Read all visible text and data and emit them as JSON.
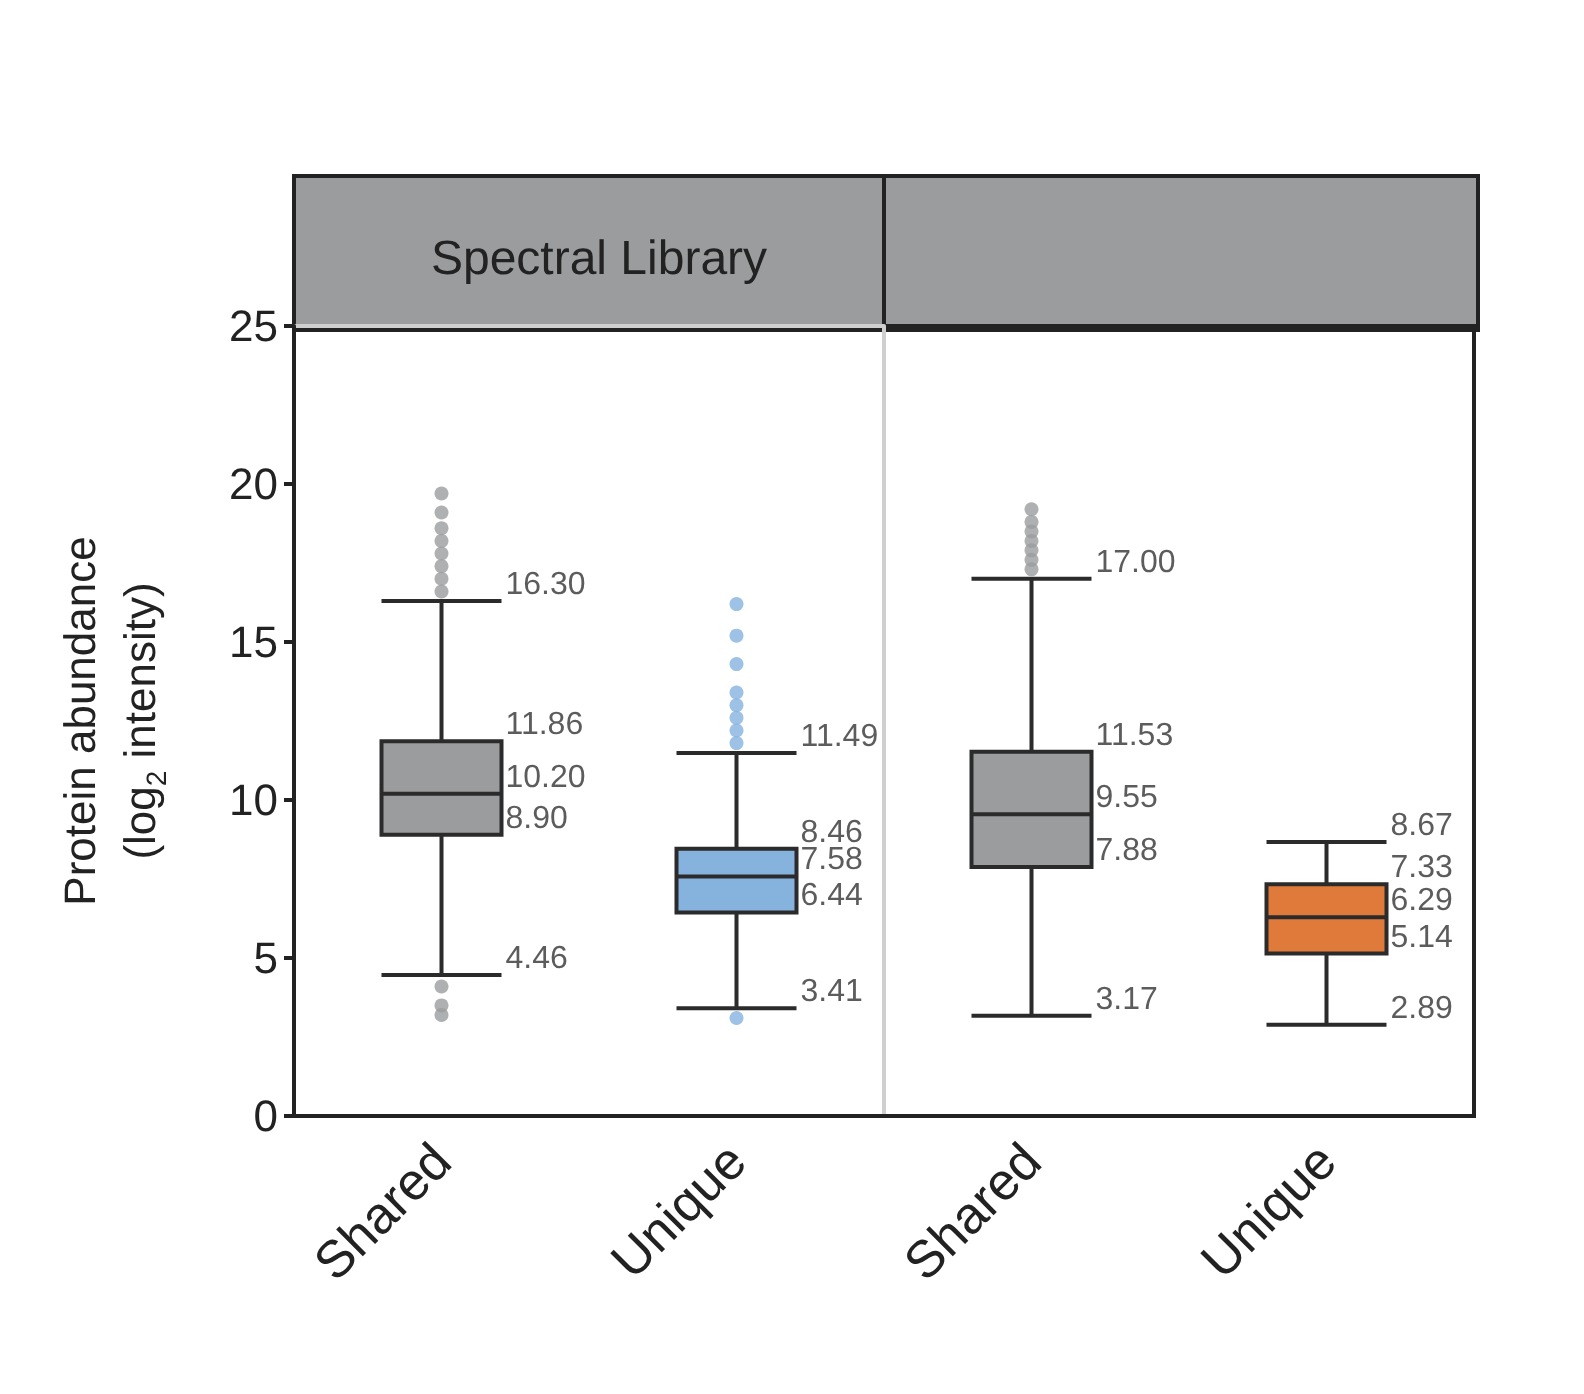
{
  "chart_data": [
    {
      "type": "box",
      "title": "Spectral Library",
      "ylabel": "Protein abundance\n(log$_{2}$ intensity)",
      "categories": [
        "Shared",
        "Unique"
      ],
      "colors": [
        "#9a9c9e",
        "#86b3de"
      ],
      "boxes": [
        {
          "low": 4.46,
          "q1": 8.9,
          "median": 10.2,
          "q3": 11.86,
          "high": 16.3,
          "outliers": [
            16.6,
            17.0,
            17.4,
            17.8,
            18.2,
            18.6,
            19.1,
            19.7,
            4.1,
            3.5,
            3.2
          ]
        },
        {
          "low": 3.41,
          "q1": 6.44,
          "median": 7.58,
          "q3": 8.46,
          "high": 11.49,
          "outliers": [
            11.8,
            12.2,
            12.6,
            13.0,
            13.4,
            14.3,
            15.2,
            16.2,
            3.1
          ]
        }
      ],
      "value_labels": [
        [
          "4.46",
          "8.90",
          "10.20",
          "11.86",
          "16.30"
        ],
        [
          "3.41",
          "6.44",
          "7.58",
          "8.46",
          "11.49"
        ]
      ],
      "ylim": [
        0,
        25
      ],
      "yticks": [
        0,
        5,
        10,
        15,
        20,
        25
      ]
    },
    {
      "type": "box",
      "categories": [
        "Shared",
        "Unique"
      ],
      "colors": [
        "#9a9c9e",
        "#e07a3a"
      ],
      "boxes": [
        {
          "low": 3.17,
          "q1": 7.88,
          "median": 9.55,
          "q3": 11.53,
          "high": 17.0,
          "outliers": [
            17.3,
            17.6,
            17.9,
            18.2,
            18.5,
            18.8,
            19.2
          ]
        },
        {
          "low": 2.89,
          "q1": 5.14,
          "median": 6.29,
          "q3": 7.33,
          "high": 8.67
        }
      ],
      "value_labels": [
        [
          "3.17",
          "7.88",
          "9.55",
          "11.53",
          "17.00"
        ],
        [
          "2.89",
          "5.14",
          "6.29",
          "7.33",
          "8.67"
        ]
      ],
      "ylim": [
        0,
        25
      ],
      "yticks": [
        0,
        5,
        10,
        15,
        20,
        25
      ],
      "tick_labels": "x"
    }
  ]
}
